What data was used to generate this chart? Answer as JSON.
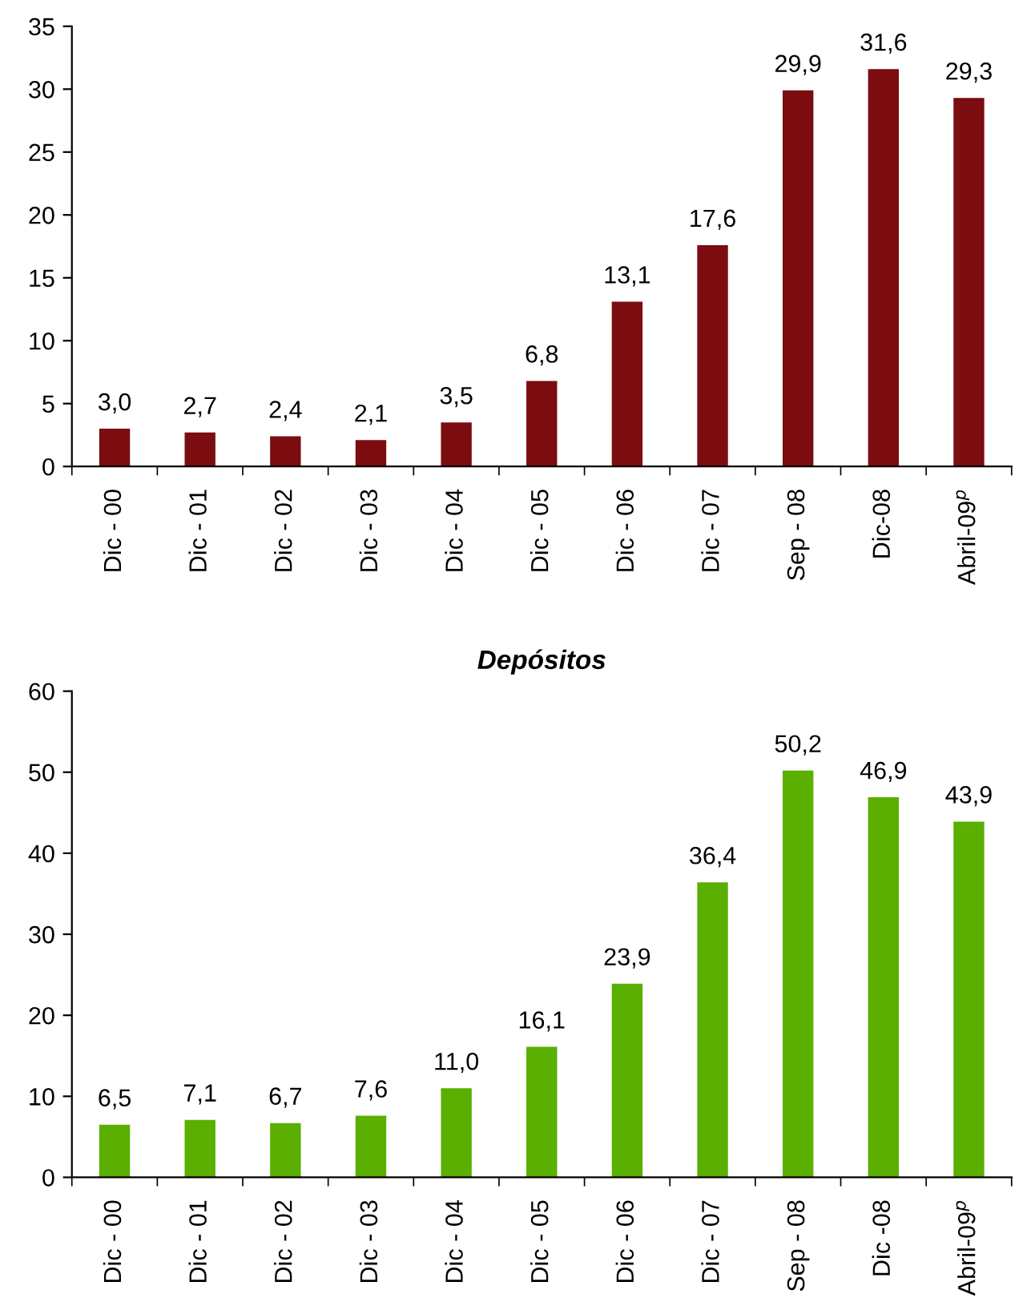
{
  "chart_data": [
    {
      "type": "bar",
      "categories": [
        "Dic - 00",
        "Dic - 01",
        "Dic - 02",
        "Dic - 03",
        "Dic - 04",
        "Dic - 05",
        "Dic - 06",
        "Dic - 07",
        "Sep - 08",
        "Dic-08",
        "Abril-09$^{p}$"
      ],
      "values": [
        3.0,
        2.7,
        2.4,
        2.1,
        3.5,
        6.8,
        13.1,
        17.6,
        29.9,
        31.6,
        29.3
      ],
      "value_labels": [
        "3,0",
        "2,7",
        "2,4",
        "2,1",
        "3,5",
        "6,8",
        "13,1",
        "17,6",
        "29,9",
        "31,6",
        "29,3"
      ],
      "color": "#7b0c10",
      "ylim": [
        0,
        35
      ],
      "yticks": [
        0,
        5,
        10,
        15,
        20,
        25,
        30,
        35
      ],
      "grid": false,
      "legend": false
    },
    {
      "type": "bar",
      "title": "Depósitos",
      "categories": [
        "Dic - 00",
        "Dic - 01",
        "Dic - 02",
        "Dic - 03",
        "Dic - 04",
        "Dic - 05",
        "Dic - 06",
        "Dic - 07",
        "Sep - 08",
        "Dic -08",
        "Abril-09$^{p}$"
      ],
      "values": [
        6.5,
        7.1,
        6.7,
        7.6,
        11.0,
        16.1,
        23.9,
        36.4,
        50.2,
        46.9,
        43.9
      ],
      "value_labels": [
        "6,5",
        "7,1",
        "6,7",
        "7,6",
        "11,0",
        "16,1",
        "23,9",
        "36,4",
        "50,2",
        "46,9",
        "43,9"
      ],
      "color": "#5aaf00",
      "ylim": [
        0,
        60
      ],
      "yticks": [
        0,
        10,
        20,
        30,
        40,
        50,
        60
      ],
      "grid": false,
      "legend": false
    }
  ]
}
